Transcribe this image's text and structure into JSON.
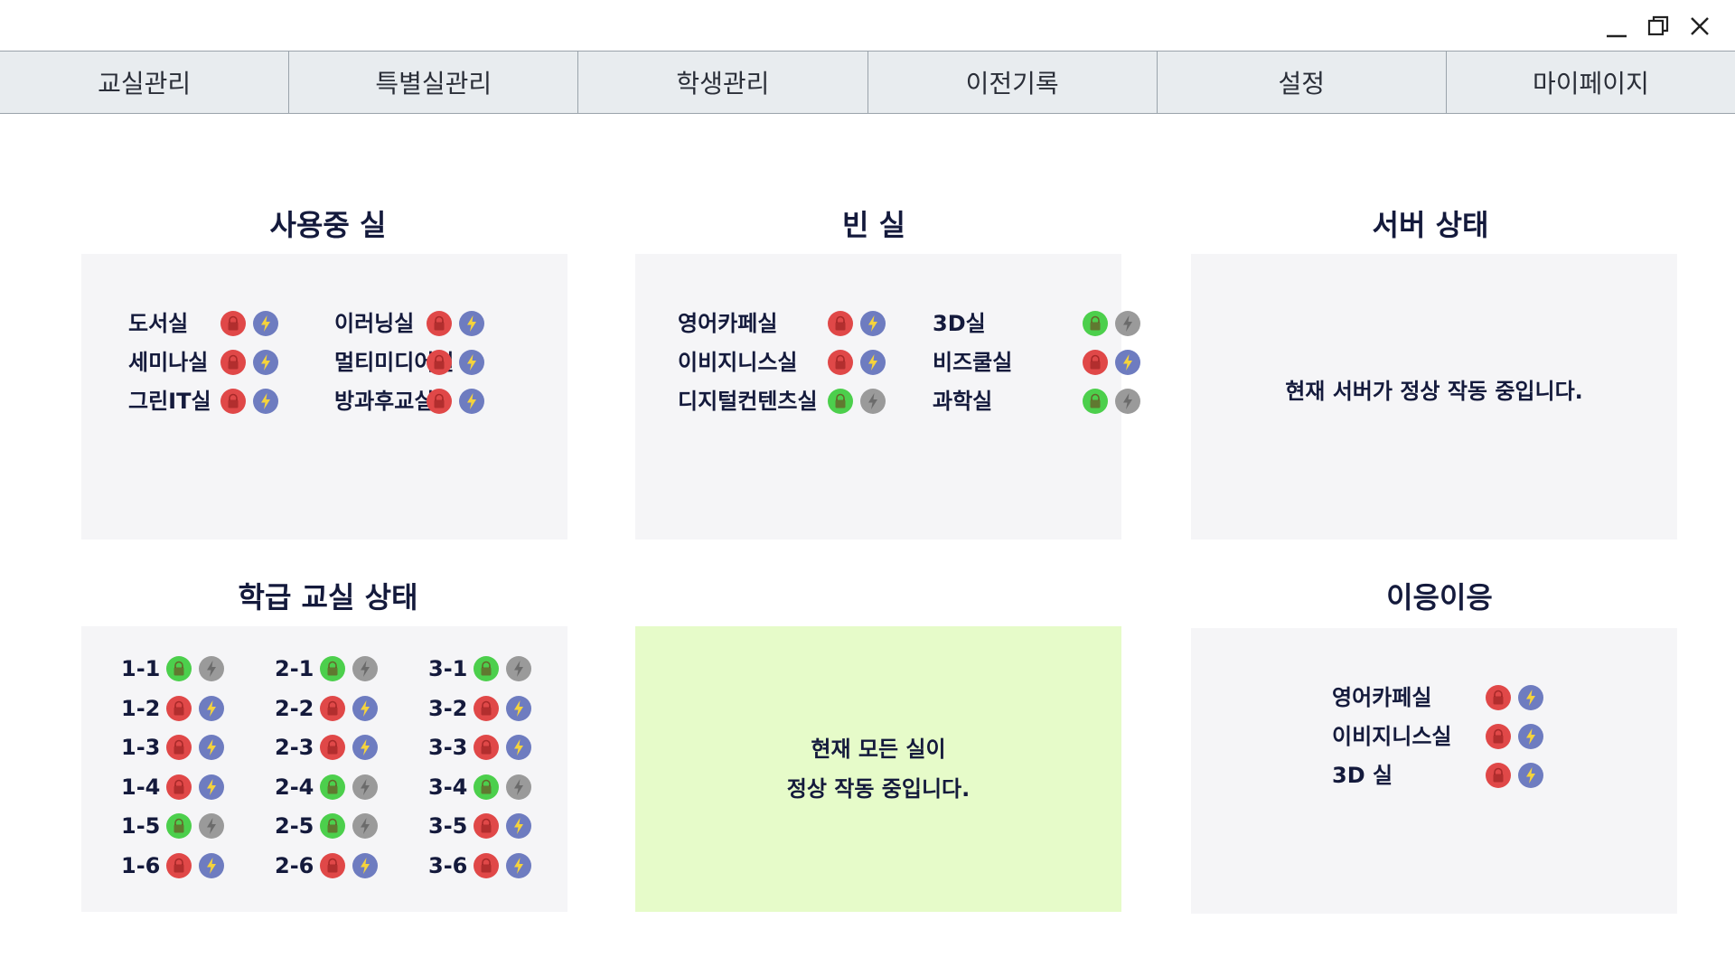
{
  "window": {
    "controls": [
      "minimize-icon",
      "maximize-icon",
      "close-icon"
    ]
  },
  "nav": {
    "tabs": [
      "교실관리",
      "특별실관리",
      "학생관리",
      "이전기록",
      "설정",
      "마이페이지"
    ]
  },
  "colors": {
    "lock_red": "#e04848",
    "lock_green": "#4ccf4c",
    "power_active": "#6e7cc0",
    "power_inactive": "#9a9a9a",
    "bolt_yellow": "#f5d33c",
    "panel_bg": "#f5f5f7",
    "ok_panel_bg": "#e6fbc9"
  },
  "in_use": {
    "title": "사용중 실",
    "rooms": [
      {
        "name": "도서실",
        "lock": "red",
        "power": "on"
      },
      {
        "name": "이러닝실",
        "lock": "red",
        "power": "on"
      },
      {
        "name": "세미나실",
        "lock": "red",
        "power": "on"
      },
      {
        "name": "멀티미디어실",
        "lock": "red",
        "power": "on"
      },
      {
        "name": "그린IT실",
        "lock": "red",
        "power": "on"
      },
      {
        "name": "방과후교실",
        "lock": "red",
        "power": "on"
      }
    ]
  },
  "empty": {
    "title": "빈 실",
    "rooms": [
      {
        "name": "영어카페실",
        "lock": "red",
        "power": "on"
      },
      {
        "name": "3D실",
        "lock": "green",
        "power": "off"
      },
      {
        "name": "이비지니스실",
        "lock": "red",
        "power": "on"
      },
      {
        "name": "비즈쿨실",
        "lock": "red",
        "power": "on"
      },
      {
        "name": "디지털컨텐츠실",
        "lock": "green",
        "power": "off"
      },
      {
        "name": "과학실",
        "lock": "green",
        "power": "off"
      }
    ]
  },
  "server": {
    "title": "서버 상태",
    "message": "현재 서버가 정상 작동 중입니다."
  },
  "classroom": {
    "title": "학급 교실 상태",
    "rooms": [
      {
        "name": "1-1",
        "lock": "green",
        "power": "off"
      },
      {
        "name": "2-1",
        "lock": "green",
        "power": "off"
      },
      {
        "name": "3-1",
        "lock": "green",
        "power": "off"
      },
      {
        "name": "1-2",
        "lock": "red",
        "power": "on"
      },
      {
        "name": "2-2",
        "lock": "red",
        "power": "on"
      },
      {
        "name": "3-2",
        "lock": "red",
        "power": "on"
      },
      {
        "name": "1-3",
        "lock": "red",
        "power": "on"
      },
      {
        "name": "2-3",
        "lock": "red",
        "power": "on"
      },
      {
        "name": "3-3",
        "lock": "red",
        "power": "on"
      },
      {
        "name": "1-4",
        "lock": "red",
        "power": "on"
      },
      {
        "name": "2-4",
        "lock": "green",
        "power": "off"
      },
      {
        "name": "3-4",
        "lock": "green",
        "power": "off"
      },
      {
        "name": "1-5",
        "lock": "green",
        "power": "off"
      },
      {
        "name": "2-5",
        "lock": "green",
        "power": "off"
      },
      {
        "name": "3-5",
        "lock": "red",
        "power": "on"
      },
      {
        "name": "1-6",
        "lock": "red",
        "power": "on"
      },
      {
        "name": "2-6",
        "lock": "red",
        "power": "on"
      },
      {
        "name": "3-6",
        "lock": "red",
        "power": "on"
      }
    ]
  },
  "status_ok": {
    "line1": "현재 모든 실이",
    "line2": "정상 작동 중입니다."
  },
  "abnormal": {
    "title": "이응이응",
    "rooms": [
      {
        "name": "영어카페실",
        "lock": "red",
        "power": "on"
      },
      {
        "name": "이비지니스실",
        "lock": "red",
        "power": "on"
      },
      {
        "name": "3D 실",
        "lock": "red",
        "power": "on"
      }
    ]
  }
}
